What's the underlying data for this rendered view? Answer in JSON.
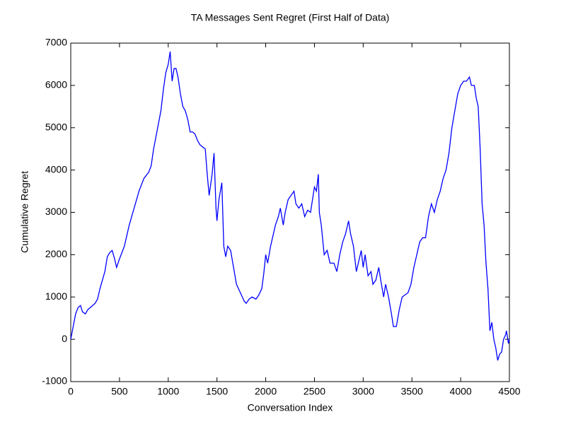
{
  "chart_data": {
    "type": "line",
    "title": "TA Messages Sent Regret (First Half of Data)",
    "xlabel": "Conversation Index",
    "ylabel": "Cumulative Regret",
    "color": "#0000ff",
    "xlim": [
      0,
      4500
    ],
    "xticks": [
      0,
      500,
      1000,
      1500,
      2000,
      2500,
      3000,
      3500,
      4000,
      4500
    ],
    "ylim": [
      -1000,
      7000
    ],
    "yticks": [
      -1000,
      0,
      1000,
      2000,
      3000,
      4000,
      5000,
      6000,
      7000
    ],
    "x": [
      0,
      25,
      50,
      75,
      100,
      120,
      150,
      175,
      200,
      225,
      250,
      275,
      300,
      325,
      350,
      375,
      400,
      425,
      450,
      470,
      500,
      550,
      600,
      650,
      700,
      750,
      800,
      825,
      850,
      875,
      900,
      925,
      950,
      975,
      1000,
      1020,
      1040,
      1060,
      1080,
      1100,
      1125,
      1150,
      1175,
      1200,
      1225,
      1250,
      1275,
      1300,
      1325,
      1350,
      1380,
      1400,
      1420,
      1450,
      1470,
      1490,
      1500,
      1520,
      1550,
      1570,
      1590,
      1610,
      1640,
      1670,
      1700,
      1730,
      1760,
      1780,
      1800,
      1830,
      1860,
      1900,
      1930,
      1960,
      1980,
      2000,
      2020,
      2050,
      2080,
      2100,
      2130,
      2150,
      2180,
      2200,
      2230,
      2260,
      2290,
      2310,
      2340,
      2370,
      2400,
      2430,
      2460,
      2480,
      2500,
      2520,
      2540,
      2550,
      2570,
      2600,
      2630,
      2660,
      2700,
      2730,
      2760,
      2790,
      2820,
      2850,
      2870,
      2900,
      2930,
      2950,
      2980,
      3000,
      3020,
      3050,
      3080,
      3100,
      3130,
      3160,
      3180,
      3210,
      3230,
      3260,
      3290,
      3310,
      3340,
      3370,
      3400,
      3430,
      3460,
      3490,
      3520,
      3550,
      3580,
      3610,
      3640,
      3670,
      3700,
      3730,
      3760,
      3790,
      3820,
      3850,
      3880,
      3910,
      3940,
      3970,
      4000,
      4030,
      4060,
      4090,
      4110,
      4140,
      4160,
      4180,
      4200,
      4220,
      4240,
      4260,
      4280,
      4300,
      4320,
      4340,
      4360,
      4380,
      4400,
      4420,
      4440,
      4460,
      4470,
      4490,
      4500
    ],
    "values": [
      0,
      300,
      600,
      750,
      800,
      650,
      600,
      700,
      750,
      800,
      850,
      950,
      1200,
      1400,
      1600,
      1950,
      2050,
      2100,
      1900,
      1700,
      1900,
      2200,
      2700,
      3100,
      3500,
      3800,
      3950,
      4100,
      4500,
      4800,
      5100,
      5400,
      5900,
      6300,
      6500,
      6800,
      6100,
      6400,
      6400,
      6200,
      5800,
      5500,
      5400,
      5200,
      4900,
      4900,
      4850,
      4700,
      4600,
      4550,
      4500,
      3900,
      3400,
      3900,
      4400,
      3100,
      2800,
      3300,
      3700,
      2200,
      1950,
      2200,
      2100,
      1700,
      1300,
      1150,
      1000,
      900,
      850,
      950,
      1000,
      950,
      1050,
      1200,
      1550,
      2000,
      1800,
      2200,
      2500,
      2700,
      2900,
      3100,
      2700,
      3000,
      3300,
      3400,
      3500,
      3200,
      3100,
      3200,
      2900,
      3050,
      3000,
      3300,
      3600,
      3500,
      3900,
      3000,
      2700,
      2000,
      2100,
      1800,
      1800,
      1600,
      2000,
      2300,
      2500,
      2800,
      2500,
      2200,
      1600,
      1800,
      2100,
      1700,
      2000,
      1500,
      1600,
      1300,
      1400,
      1700,
      1400,
      1000,
      1300,
      1000,
      600,
      300,
      300,
      700,
      1000,
      1050,
      1100,
      1300,
      1700,
      2000,
      2300,
      2400,
      2400,
      2900,
      3200,
      3000,
      3300,
      3500,
      3800,
      4000,
      4400,
      5000,
      5400,
      5800,
      6000,
      6100,
      6100,
      6200,
      6000,
      6000,
      5700,
      5500,
      4500,
      3200,
      2700,
      1800,
      1200,
      200,
      400,
      0,
      -200,
      -500,
      -350,
      -300,
      0,
      100,
      200,
      -100,
      0
    ]
  }
}
